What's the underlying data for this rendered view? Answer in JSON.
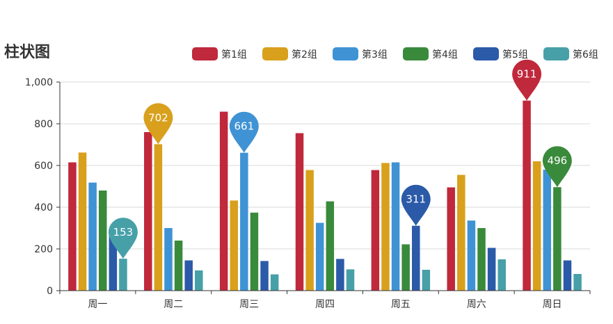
{
  "chart_data": {
    "type": "bar",
    "title": "柱状图",
    "xlabel": "",
    "ylabel": "",
    "ylim": [
      0,
      1000
    ],
    "yticks": [
      0,
      200,
      400,
      600,
      800,
      1000
    ],
    "ytick_labels": [
      "0",
      "200",
      "400",
      "600",
      "800",
      "1,000"
    ],
    "grid": true,
    "legend_position": "top-right",
    "categories": [
      "周一",
      "周二",
      "周三",
      "周四",
      "周五",
      "周六",
      "周日"
    ],
    "series": [
      {
        "name": "第1组",
        "color": "#c0283c",
        "values": [
          615,
          760,
          858,
          755,
          578,
          495,
          911
        ]
      },
      {
        "name": "第2组",
        "color": "#d8a01c",
        "values": [
          662,
          702,
          432,
          578,
          612,
          555,
          620
        ]
      },
      {
        "name": "第3组",
        "color": "#3f93d4",
        "values": [
          518,
          300,
          661,
          325,
          615,
          336,
          580
        ]
      },
      {
        "name": "第4组",
        "color": "#3a8a3c",
        "values": [
          480,
          240,
          374,
          428,
          222,
          300,
          496
        ]
      },
      {
        "name": "第5组",
        "color": "#2b5aa8",
        "values": [
          290,
          145,
          142,
          152,
          311,
          205,
          145
        ]
      },
      {
        "name": "第6组",
        "color": "#47a0a8",
        "values": [
          153,
          97,
          78,
          102,
          100,
          150,
          80
        ]
      }
    ],
    "markers": [
      {
        "label": "153",
        "series": 5,
        "category": 0
      },
      {
        "label": "702",
        "series": 1,
        "category": 1
      },
      {
        "label": "661",
        "series": 2,
        "category": 2
      },
      {
        "label": "311",
        "series": 4,
        "category": 4
      },
      {
        "label": "911",
        "series": 0,
        "category": 6
      },
      {
        "label": "496",
        "series": 3,
        "category": 6
      }
    ]
  }
}
